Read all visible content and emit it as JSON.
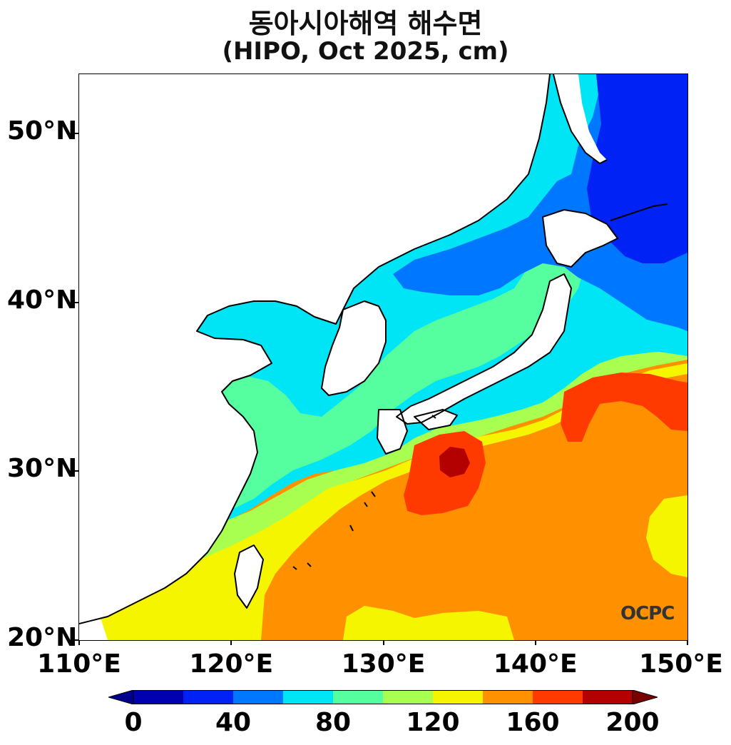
{
  "title": {
    "line1": "동아시아해역 해수면",
    "line2": "(HIPO, Oct 2025, cm)"
  },
  "map": {
    "lon_range": [
      110,
      150
    ],
    "lat_range": [
      20,
      53.5
    ],
    "y_ticks": [
      {
        "lat": 50,
        "label": "50°N"
      },
      {
        "lat": 40,
        "label": "40°N"
      },
      {
        "lat": 30,
        "label": "30°N"
      },
      {
        "lat": 20,
        "label": "20°N"
      }
    ],
    "x_ticks": [
      {
        "lon": 110,
        "label": "110°E"
      },
      {
        "lon": 120,
        "label": "120°E"
      },
      {
        "lon": 130,
        "label": "130°E"
      },
      {
        "lon": 140,
        "label": "140°E"
      },
      {
        "lon": 150,
        "label": "150°E"
      }
    ],
    "land_color": "#ffffff",
    "coastline_color": "#000000"
  },
  "colorbar": {
    "min": 0,
    "max": 200,
    "step": 20,
    "extend": "both",
    "colors": [
      "#0000b0",
      "#0022f5",
      "#0077ff",
      "#00e5f5",
      "#55ff9f",
      "#a8ff50",
      "#f5f500",
      "#ff9100",
      "#ff3a00",
      "#b30000"
    ],
    "under_color": "#00008c",
    "over_color": "#7a0000",
    "tick_labels": [
      {
        "value": 0,
        "label": "0"
      },
      {
        "value": 40,
        "label": "40"
      },
      {
        "value": 80,
        "label": "80"
      },
      {
        "value": 120,
        "label": "120"
      },
      {
        "value": 160,
        "label": "160"
      },
      {
        "value": 200,
        "label": "200"
      }
    ]
  },
  "watermark": "OCPC"
}
